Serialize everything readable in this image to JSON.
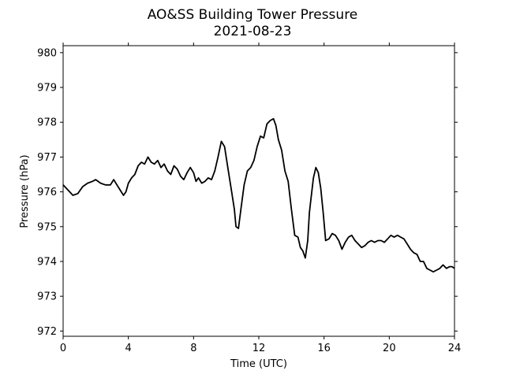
{
  "chart_data": {
    "type": "line",
    "title": "AO&SS Building Tower Pressure",
    "subtitle": "2021-08-23",
    "xlabel": "Time (UTC)",
    "ylabel": "Pressure (hPa)",
    "xlim": [
      0,
      24
    ],
    "ylim": [
      971.85,
      980.2
    ],
    "xticks": [
      0,
      4,
      8,
      12,
      16,
      20,
      24
    ],
    "yticks": [
      972,
      973,
      974,
      975,
      976,
      977,
      978,
      979,
      980
    ],
    "grid": false,
    "line_color": "#000000",
    "series": [
      {
        "x": [
          0,
          0.3,
          0.6,
          0.9,
          1.2,
          1.5,
          1.8,
          2.0,
          2.3,
          2.6,
          2.9,
          3.1,
          3.3,
          3.5,
          3.7,
          3.85,
          4.0,
          4.2,
          4.4,
          4.6,
          4.8,
          5.0,
          5.2,
          5.4,
          5.6,
          5.8,
          6.0,
          6.2,
          6.4,
          6.6,
          6.8,
          7.0,
          7.2,
          7.4,
          7.6,
          7.8,
          8.0,
          8.15,
          8.3,
          8.5,
          8.7,
          8.9,
          9.1,
          9.3,
          9.5,
          9.7,
          9.9,
          10.1,
          10.3,
          10.5,
          10.6,
          10.75,
          10.9,
          11.1,
          11.3,
          11.5,
          11.7,
          11.9,
          12.1,
          12.3,
          12.5,
          12.7,
          12.9,
          13.05,
          13.2,
          13.4,
          13.6,
          13.8,
          14.0,
          14.2,
          14.4,
          14.55,
          14.7,
          14.85,
          15.0,
          15.1,
          15.2,
          15.35,
          15.5,
          15.65,
          15.8,
          15.95,
          16.1,
          16.3,
          16.5,
          16.7,
          16.9,
          17.1,
          17.3,
          17.5,
          17.7,
          17.9,
          18.1,
          18.3,
          18.5,
          18.7,
          18.9,
          19.1,
          19.3,
          19.5,
          19.7,
          19.9,
          20.1,
          20.3,
          20.5,
          20.7,
          20.9,
          21.1,
          21.3,
          21.5,
          21.7,
          21.9,
          22.1,
          22.3,
          22.5,
          22.7,
          22.9,
          23.1,
          23.3,
          23.5,
          23.7,
          23.85,
          24.0
        ],
        "values": [
          976.2,
          976.05,
          975.9,
          975.95,
          976.15,
          976.25,
          976.3,
          976.35,
          976.25,
          976.2,
          976.2,
          976.35,
          976.2,
          976.05,
          975.9,
          976.0,
          976.25,
          976.4,
          976.5,
          976.75,
          976.85,
          976.8,
          977.0,
          976.85,
          976.8,
          976.9,
          976.7,
          976.8,
          976.6,
          976.5,
          976.75,
          976.65,
          976.45,
          976.35,
          976.55,
          976.7,
          976.55,
          976.3,
          976.4,
          976.25,
          976.3,
          976.4,
          976.35,
          976.6,
          977.0,
          977.45,
          977.3,
          976.7,
          976.1,
          975.5,
          975.0,
          974.95,
          975.5,
          976.2,
          976.6,
          976.7,
          976.9,
          977.3,
          977.6,
          977.55,
          977.95,
          978.05,
          978.1,
          977.9,
          977.5,
          977.2,
          976.6,
          976.3,
          975.5,
          974.75,
          974.7,
          974.4,
          974.3,
          974.1,
          974.6,
          975.4,
          975.8,
          976.4,
          976.7,
          976.55,
          976.1,
          975.4,
          974.6,
          974.65,
          974.8,
          974.75,
          974.6,
          974.35,
          974.55,
          974.7,
          974.75,
          974.6,
          974.5,
          974.4,
          974.45,
          974.55,
          974.6,
          974.55,
          974.6,
          974.6,
          974.55,
          974.65,
          974.75,
          974.7,
          974.75,
          974.7,
          974.65,
          974.5,
          974.35,
          974.25,
          974.2,
          974.0,
          974.0,
          973.8,
          973.75,
          973.7,
          973.75,
          973.8,
          973.9,
          973.8,
          973.85,
          973.85,
          973.8
        ]
      }
    ]
  }
}
